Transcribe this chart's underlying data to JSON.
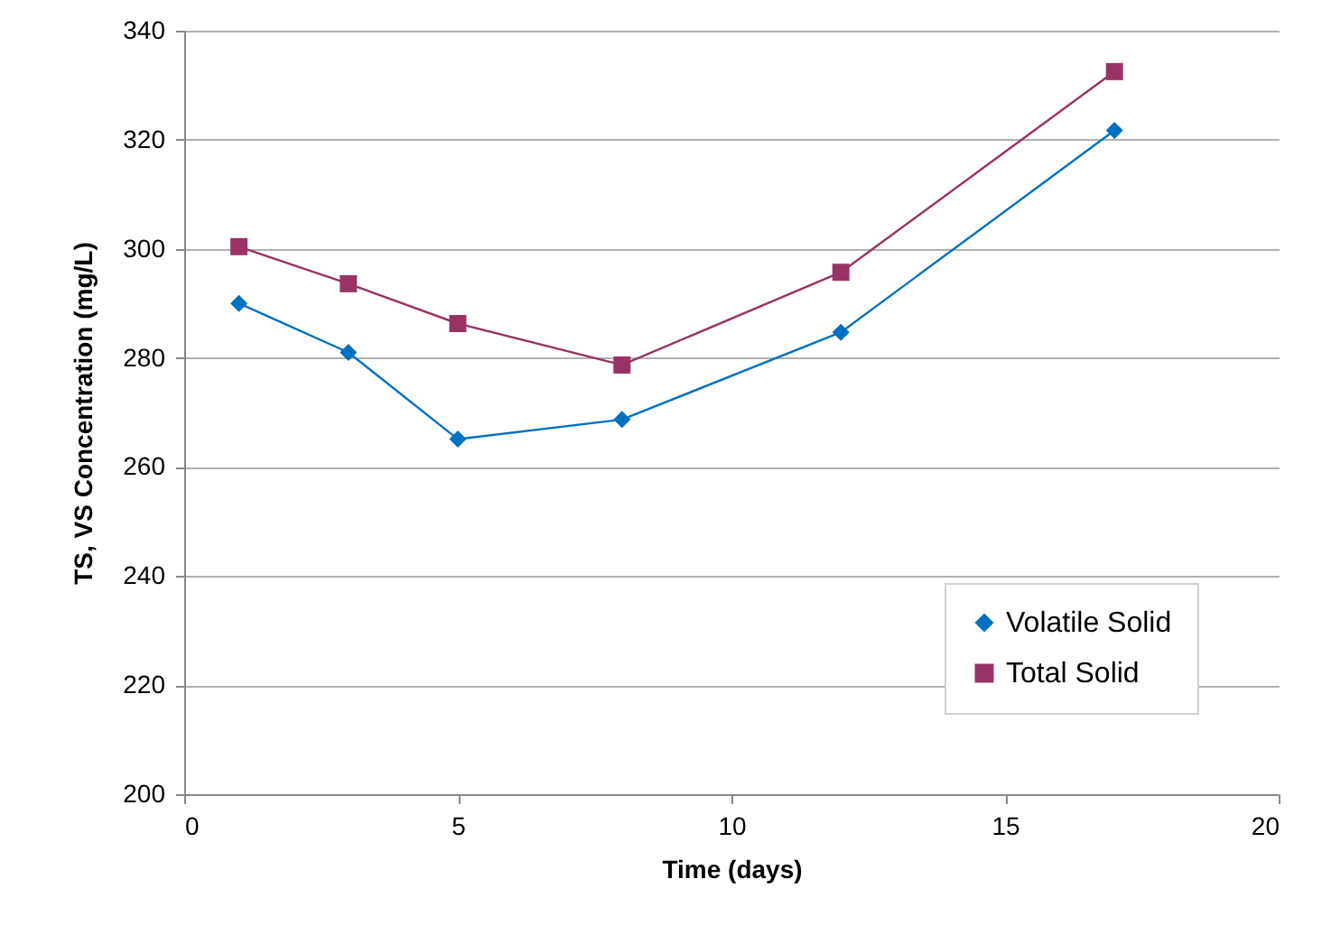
{
  "chart_data": {
    "type": "line",
    "xlabel": "Time (days)",
    "ylabel": "TS, VS Concentration (mg/L)",
    "x": [
      1,
      3,
      5,
      8,
      12,
      17
    ],
    "series": [
      {
        "name": "Volatile Solid",
        "color": "#0070c0",
        "marker": "diamond",
        "values": [
          290.0,
          281.0,
          265.1,
          268.7,
          284.7,
          321.7
        ]
      },
      {
        "name": "Total Solid",
        "color": "#993366",
        "marker": "square",
        "values": [
          300.4,
          293.6,
          286.3,
          278.7,
          295.7,
          332.5
        ]
      }
    ],
    "xlim": [
      0,
      20
    ],
    "xticks": [
      0,
      5,
      10,
      15,
      20
    ],
    "ylim": [
      200,
      340
    ],
    "yticks": [
      200,
      220,
      240,
      260,
      280,
      300,
      320,
      340
    ],
    "grid": "y",
    "legend": "bottom right"
  }
}
